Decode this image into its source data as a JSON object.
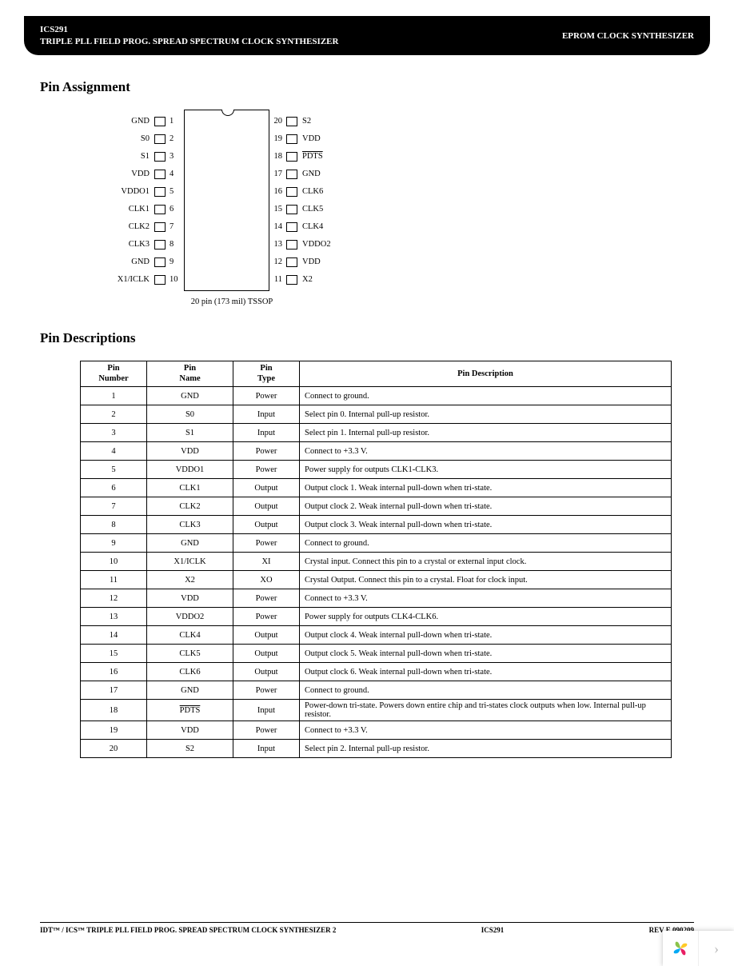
{
  "header": {
    "part": "ICS291",
    "subtitle": "TRIPLE PLL FIELD PROG. SPREAD SPECTRUM CLOCK SYNTHESIZER",
    "right": "EPROM CLOCK SYNTHESIZER"
  },
  "sections": {
    "pin_assignment": "Pin Assignment",
    "pin_descriptions": "Pin Descriptions"
  },
  "diagram": {
    "caption": "20 pin (173 mil) TSSOP",
    "left_pins": [
      {
        "label": "GND",
        "num": "1",
        "overline": false
      },
      {
        "label": "S0",
        "num": "2",
        "overline": false
      },
      {
        "label": "S1",
        "num": "3",
        "overline": false
      },
      {
        "label": "VDD",
        "num": "4",
        "overline": false
      },
      {
        "label": "VDDO1",
        "num": "5",
        "overline": false
      },
      {
        "label": "CLK1",
        "num": "6",
        "overline": false
      },
      {
        "label": "CLK2",
        "num": "7",
        "overline": false
      },
      {
        "label": "CLK3",
        "num": "8",
        "overline": false
      },
      {
        "label": "GND",
        "num": "9",
        "overline": false
      },
      {
        "label": "X1/ICLK",
        "num": "10",
        "overline": false
      }
    ],
    "right_pins": [
      {
        "label": "S2",
        "num": "20",
        "overline": false
      },
      {
        "label": "VDD",
        "num": "19",
        "overline": false
      },
      {
        "label": "PDTS",
        "num": "18",
        "overline": true
      },
      {
        "label": "GND",
        "num": "17",
        "overline": false
      },
      {
        "label": "CLK6",
        "num": "16",
        "overline": false
      },
      {
        "label": "CLK5",
        "num": "15",
        "overline": false
      },
      {
        "label": "CLK4",
        "num": "14",
        "overline": false
      },
      {
        "label": "VDDO2",
        "num": "13",
        "overline": false
      },
      {
        "label": "VDD",
        "num": "12",
        "overline": false
      },
      {
        "label": "X2",
        "num": "11",
        "overline": false
      }
    ]
  },
  "table": {
    "headers": {
      "num": "Pin\nNumber",
      "name": "Pin\nName",
      "type": "Pin\nType",
      "desc": "Pin Description"
    },
    "rows": [
      {
        "num": "1",
        "name": "GND",
        "name_overline": false,
        "type": "Power",
        "desc": "Connect to ground."
      },
      {
        "num": "2",
        "name": "S0",
        "name_overline": false,
        "type": "Input",
        "desc": "Select pin 0. Internal pull-up resistor."
      },
      {
        "num": "3",
        "name": "S1",
        "name_overline": false,
        "type": "Input",
        "desc": "Select pin 1. Internal pull-up resistor."
      },
      {
        "num": "4",
        "name": "VDD",
        "name_overline": false,
        "type": "Power",
        "desc": "Connect to +3.3 V."
      },
      {
        "num": "5",
        "name": "VDDO1",
        "name_overline": false,
        "type": "Power",
        "desc": "Power supply for outputs CLK1-CLK3."
      },
      {
        "num": "6",
        "name": "CLK1",
        "name_overline": false,
        "type": "Output",
        "desc": "Output clock 1. Weak internal pull-down when tri-state."
      },
      {
        "num": "7",
        "name": "CLK2",
        "name_overline": false,
        "type": "Output",
        "desc": "Output clock 2. Weak internal pull-down when tri-state."
      },
      {
        "num": "8",
        "name": "CLK3",
        "name_overline": false,
        "type": "Output",
        "desc": "Output clock 3. Weak internal pull-down when tri-state."
      },
      {
        "num": "9",
        "name": "GND",
        "name_overline": false,
        "type": "Power",
        "desc": "Connect to ground."
      },
      {
        "num": "10",
        "name": "X1/ICLK",
        "name_overline": false,
        "type": "XI",
        "desc": "Crystal input. Connect this pin to a crystal or external input clock."
      },
      {
        "num": "11",
        "name": "X2",
        "name_overline": false,
        "type": "XO",
        "desc": "Crystal Output. Connect this pin to a crystal. Float for clock input."
      },
      {
        "num": "12",
        "name": "VDD",
        "name_overline": false,
        "type": "Power",
        "desc": "Connect to +3.3 V."
      },
      {
        "num": "13",
        "name": "VDDO2",
        "name_overline": false,
        "type": "Power",
        "desc": "Power supply for outputs CLK4-CLK6."
      },
      {
        "num": "14",
        "name": "CLK4",
        "name_overline": false,
        "type": "Output",
        "desc": "Output clock 4. Weak internal pull-down when tri-state."
      },
      {
        "num": "15",
        "name": "CLK5",
        "name_overline": false,
        "type": "Output",
        "desc": "Output clock 5. Weak internal pull-down when tri-state."
      },
      {
        "num": "16",
        "name": "CLK6",
        "name_overline": false,
        "type": "Output",
        "desc": "Output clock 6. Weak internal pull-down when tri-state."
      },
      {
        "num": "17",
        "name": "GND",
        "name_overline": false,
        "type": "Power",
        "desc": "Connect to ground."
      },
      {
        "num": "18",
        "name": "PDTS",
        "name_overline": true,
        "type": "Input",
        "desc": "Power-down tri-state. Powers down entire chip and tri-states clock outputs when low. Internal pull-up resistor."
      },
      {
        "num": "19",
        "name": "VDD",
        "name_overline": false,
        "type": "Power",
        "desc": "Connect to +3.3 V."
      },
      {
        "num": "20",
        "name": "S2",
        "name_overline": false,
        "type": "Input",
        "desc": "Select pin 2. Internal pull-up resistor."
      }
    ]
  },
  "footer": {
    "left": "IDT™ / ICS™ TRIPLE PLL FIELD PROG. SPREAD SPECTRUM CLOCK SYNTHESIZER 2",
    "center": "ICS291",
    "right": "REV E 090209"
  },
  "widget": {
    "icon_colors": [
      "#8bc34a",
      "#ffca28",
      "#e91e63",
      "#03a9f4"
    ],
    "arrow": "›"
  }
}
